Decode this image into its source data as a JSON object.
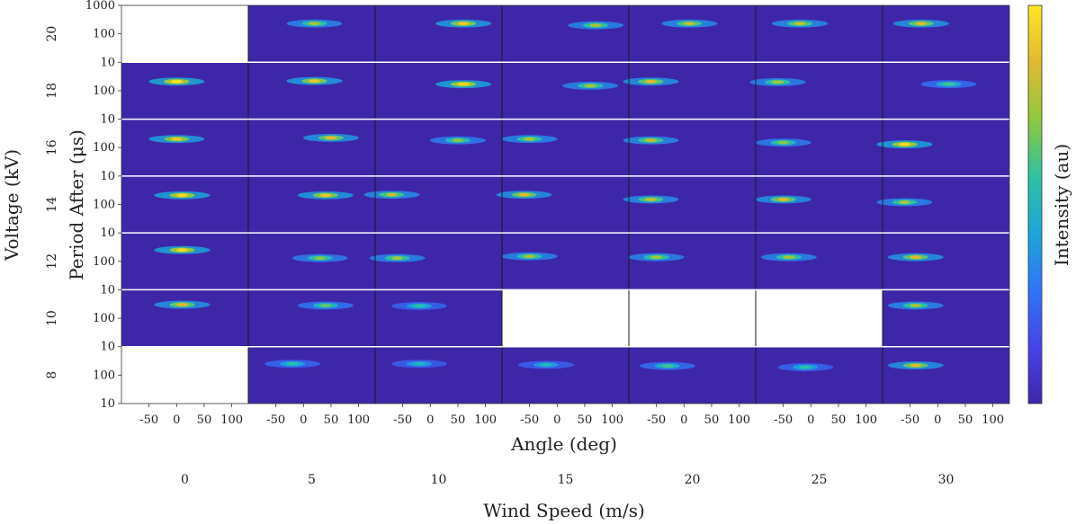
{
  "chart_data": {
    "type": "heatmap",
    "title": "",
    "layout": "grid of heatmaps: rows = voltage, columns = wind speed",
    "row_axis_label": "Voltage (kV)",
    "row_values": [
      "20",
      "18",
      "16",
      "14",
      "12",
      "10",
      "8"
    ],
    "column_axis_label": "Wind Speed (m/s)",
    "column_values": [
      "0",
      "5",
      "10",
      "15",
      "20",
      "25",
      "30"
    ],
    "subplot_xlabel": "Angle (deg)",
    "subplot_ylabel": "Period After (μs)",
    "x_ticks": [
      "-50",
      "0",
      "50",
      "100"
    ],
    "x_tick_values": [
      -50,
      0,
      50,
      100
    ],
    "xlim": [
      -100,
      130
    ],
    "y_ticks": [
      "10",
      "100",
      "1000"
    ],
    "y_tick_values": [
      10,
      100,
      1000
    ],
    "ylim": [
      10,
      1000
    ],
    "y_scale": "log",
    "colorbar_label": "Intensity (au)",
    "colormap": [
      "#3e26a8",
      "#4744e8",
      "#2f76f5",
      "#1aa7d9",
      "#2dc3a0",
      "#90c93c",
      "#e2b92e",
      "#fde725"
    ],
    "background_color": "#3e26a8",
    "missing_cells": [
      [
        0,
        0
      ],
      [
        5,
        3
      ],
      [
        5,
        4
      ],
      [
        5,
        5
      ],
      [
        6,
        0
      ]
    ],
    "hotspots": [
      {
        "row": 0,
        "col": 1,
        "angle": 20,
        "period": 230,
        "intensity": 0.75
      },
      {
        "row": 0,
        "col": 2,
        "angle": 60,
        "period": 230,
        "intensity": 0.9
      },
      {
        "row": 0,
        "col": 3,
        "angle": 70,
        "period": 200,
        "intensity": 0.75
      },
      {
        "row": 0,
        "col": 4,
        "angle": 10,
        "period": 230,
        "intensity": 0.8
      },
      {
        "row": 0,
        "col": 5,
        "angle": -20,
        "period": 230,
        "intensity": 0.8
      },
      {
        "row": 0,
        "col": 6,
        "angle": -30,
        "period": 230,
        "intensity": 0.85
      },
      {
        "row": 1,
        "col": 0,
        "angle": 0,
        "period": 210,
        "intensity": 1.0
      },
      {
        "row": 1,
        "col": 1,
        "angle": 20,
        "period": 220,
        "intensity": 0.9
      },
      {
        "row": 1,
        "col": 2,
        "angle": 60,
        "period": 170,
        "intensity": 0.95
      },
      {
        "row": 1,
        "col": 3,
        "angle": 60,
        "period": 150,
        "intensity": 0.75
      },
      {
        "row": 1,
        "col": 4,
        "angle": -60,
        "period": 210,
        "intensity": 0.85
      },
      {
        "row": 1,
        "col": 5,
        "angle": -60,
        "period": 200,
        "intensity": 0.75
      },
      {
        "row": 1,
        "col": 6,
        "angle": 20,
        "period": 170,
        "intensity": 0.6
      },
      {
        "row": 2,
        "col": 0,
        "angle": 0,
        "period": 200,
        "intensity": 0.9
      },
      {
        "row": 2,
        "col": 1,
        "angle": 50,
        "period": 220,
        "intensity": 0.85
      },
      {
        "row": 2,
        "col": 2,
        "angle": 50,
        "period": 180,
        "intensity": 0.7
      },
      {
        "row": 2,
        "col": 3,
        "angle": -50,
        "period": 200,
        "intensity": 0.75
      },
      {
        "row": 2,
        "col": 4,
        "angle": -60,
        "period": 180,
        "intensity": 0.8
      },
      {
        "row": 2,
        "col": 5,
        "angle": -50,
        "period": 150,
        "intensity": 0.7
      },
      {
        "row": 2,
        "col": 6,
        "angle": -60,
        "period": 130,
        "intensity": 0.95
      },
      {
        "row": 3,
        "col": 0,
        "angle": 10,
        "period": 210,
        "intensity": 0.95
      },
      {
        "row": 3,
        "col": 1,
        "angle": 40,
        "period": 210,
        "intensity": 0.9
      },
      {
        "row": 3,
        "col": 2,
        "angle": -70,
        "period": 220,
        "intensity": 0.8
      },
      {
        "row": 3,
        "col": 3,
        "angle": -60,
        "period": 220,
        "intensity": 0.85
      },
      {
        "row": 3,
        "col": 4,
        "angle": -60,
        "period": 150,
        "intensity": 0.8
      },
      {
        "row": 3,
        "col": 5,
        "angle": -50,
        "period": 150,
        "intensity": 0.85
      },
      {
        "row": 3,
        "col": 6,
        "angle": -60,
        "period": 120,
        "intensity": 0.75
      },
      {
        "row": 4,
        "col": 0,
        "angle": 10,
        "period": 250,
        "intensity": 0.95
      },
      {
        "row": 4,
        "col": 1,
        "angle": 30,
        "period": 130,
        "intensity": 0.7
      },
      {
        "row": 4,
        "col": 2,
        "angle": -60,
        "period": 130,
        "intensity": 0.75
      },
      {
        "row": 4,
        "col": 3,
        "angle": -50,
        "period": 150,
        "intensity": 0.75
      },
      {
        "row": 4,
        "col": 4,
        "angle": -50,
        "period": 140,
        "intensity": 0.75
      },
      {
        "row": 4,
        "col": 5,
        "angle": -40,
        "period": 140,
        "intensity": 0.75
      },
      {
        "row": 4,
        "col": 6,
        "angle": -40,
        "period": 140,
        "intensity": 0.85
      },
      {
        "row": 5,
        "col": 0,
        "angle": 10,
        "period": 300,
        "intensity": 0.85
      },
      {
        "row": 5,
        "col": 1,
        "angle": 40,
        "period": 280,
        "intensity": 0.65
      },
      {
        "row": 5,
        "col": 2,
        "angle": -20,
        "period": 270,
        "intensity": 0.55
      },
      {
        "row": 5,
        "col": 6,
        "angle": -40,
        "period": 280,
        "intensity": 0.75
      },
      {
        "row": 6,
        "col": 1,
        "angle": -20,
        "period": 250,
        "intensity": 0.55
      },
      {
        "row": 6,
        "col": 2,
        "angle": -20,
        "period": 250,
        "intensity": 0.5
      },
      {
        "row": 6,
        "col": 3,
        "angle": -20,
        "period": 230,
        "intensity": 0.5
      },
      {
        "row": 6,
        "col": 4,
        "angle": -30,
        "period": 210,
        "intensity": 0.6
      },
      {
        "row": 6,
        "col": 5,
        "angle": -10,
        "period": 190,
        "intensity": 0.55
      },
      {
        "row": 6,
        "col": 6,
        "angle": -40,
        "period": 220,
        "intensity": 0.85
      }
    ]
  }
}
